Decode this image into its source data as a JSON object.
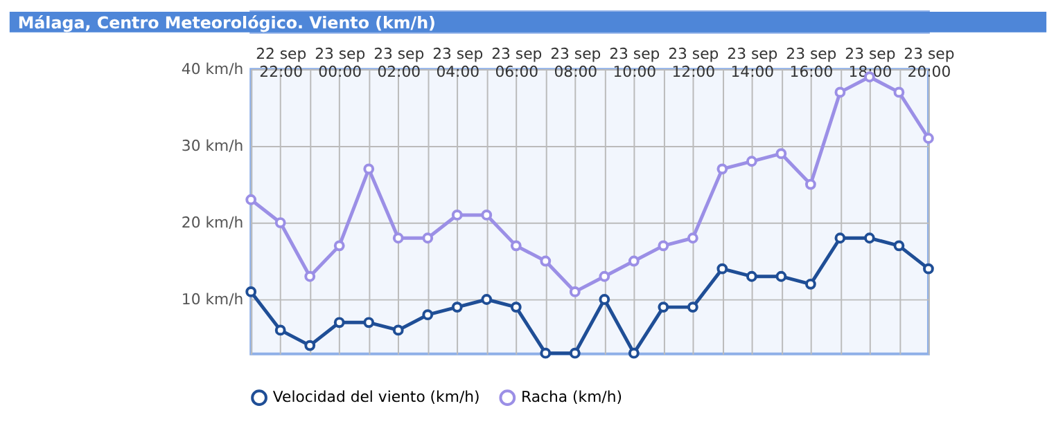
{
  "chart_data": {
    "type": "line",
    "title": "Málaga, Centro Meteorológico. Viento (km/h)",
    "categories": [
      null,
      "22 sep\n22:00",
      null,
      "23 sep\n00:00",
      null,
      "23 sep\n02:00",
      null,
      "23 sep\n04:00",
      null,
      "23 sep\n06:00",
      null,
      "23 sep\n08:00",
      null,
      "23 sep\n10:00",
      null,
      "23 sep\n12:00",
      null,
      "23 sep\n14:00",
      null,
      "23 sep\n16:00",
      null,
      "23 sep\n18:00",
      null,
      "23 sep\n20:00"
    ],
    "series": [
      {
        "name": "Velocidad del viento (km/h)",
        "color": "#1f4e96",
        "values": [
          11,
          6,
          4,
          7,
          7,
          6,
          8,
          9,
          10,
          9,
          3,
          3,
          10,
          3,
          9,
          9,
          14,
          13,
          13,
          12,
          18,
          18,
          17,
          14
        ]
      },
      {
        "name": "Racha (km/h)",
        "color": "#9b8fe6",
        "values": [
          23,
          20,
          13,
          17,
          27,
          18,
          18,
          21,
          21,
          17,
          15,
          11,
          13,
          15,
          17,
          18,
          27,
          28,
          29,
          25,
          37,
          39,
          37,
          31
        ]
      }
    ],
    "ylim": [
      2.9,
      40
    ],
    "yticks": [
      {
        "value": 10,
        "label": "10 km/h"
      },
      {
        "value": 20,
        "label": "20 km/h"
      },
      {
        "value": 30,
        "label": "30 km/h"
      },
      {
        "value": 40,
        "label": "40 km/h"
      }
    ],
    "grid": true,
    "legend": "bottom",
    "marker": "circle",
    "line_style": "solid"
  }
}
